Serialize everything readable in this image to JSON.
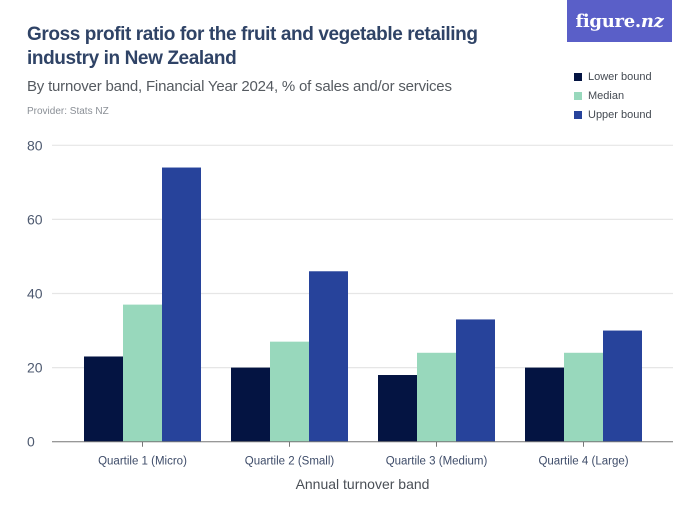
{
  "header": {
    "title": "Gross profit ratio for the fruit and vegetable retailing industry in New Zealand",
    "subtitle": "By turnover band, Financial Year 2024, % of sales and/or services",
    "provider": "Provider: Stats NZ"
  },
  "logo": {
    "text_main": "figure.",
    "text_accent": "nz",
    "color": "#5a5fc8"
  },
  "chart_data": {
    "type": "bar",
    "title": "Gross profit ratio for the fruit and vegetable retailing industry in New Zealand",
    "subtitle": "By turnover band, Financial Year 2024, % of sales and/or services",
    "xlabel": "Annual turnover band",
    "ylabel": "",
    "ylim": [
      0,
      80
    ],
    "yticks": [
      0,
      20,
      40,
      60,
      80
    ],
    "grid": true,
    "legend_position": "top-right",
    "categories": [
      "Quartile 1 (Micro)",
      "Quartile 2 (Small)",
      "Quartile 3 (Medium)",
      "Quartile 4 (Large)"
    ],
    "series": [
      {
        "name": "Lower bound",
        "color": "#041442",
        "values": [
          23,
          20,
          18,
          20
        ]
      },
      {
        "name": "Median",
        "color": "#98d8bc",
        "values": [
          37,
          27,
          24,
          24
        ]
      },
      {
        "name": "Upper bound",
        "color": "#27439b",
        "values": [
          74,
          46,
          33,
          30
        ]
      }
    ]
  }
}
